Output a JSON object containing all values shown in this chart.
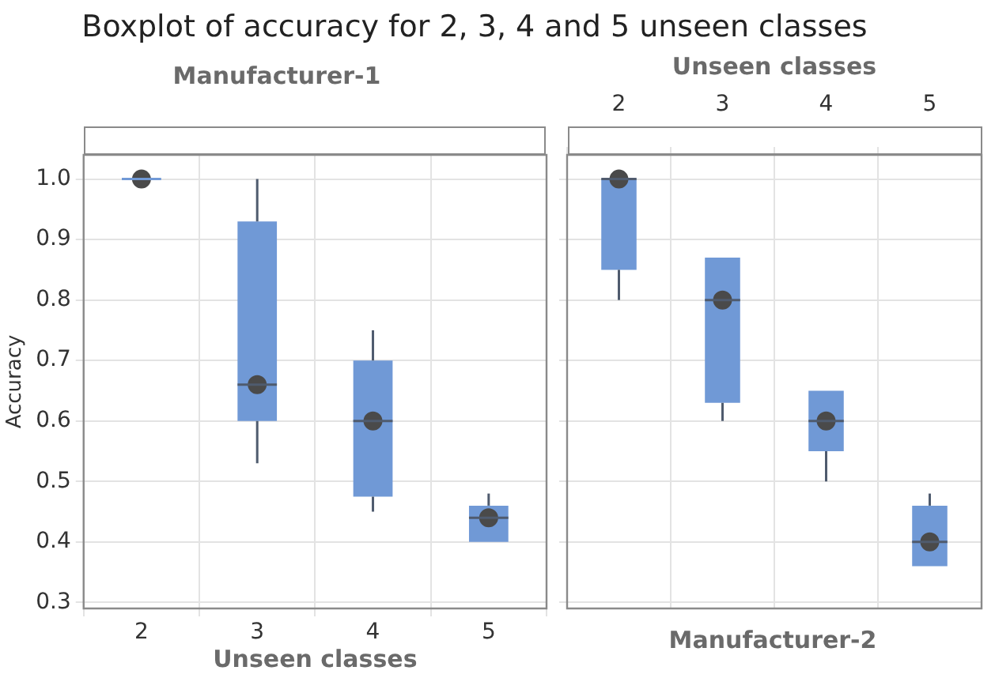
{
  "chart_data": [
    {
      "type": "box",
      "title": "Boxplot of accuracy for 2, 3, 4 and 5 unseen classes",
      "subtitle": "Manufacturer-1",
      "xlabel": "Unseen classes",
      "ylabel": "Accuracy",
      "categories": [
        "2",
        "3",
        "4",
        "5"
      ],
      "series": [
        {
          "color": "#7099d6",
          "boxes": [
            {
              "low": 1.0,
              "q1": 1.0,
              "median": 1.0,
              "q3": 1.0,
              "high": 1.0,
              "mean": 1.0
            },
            {
              "low": 0.53,
              "q1": 0.6,
              "median": 0.66,
              "q3": 0.93,
              "high": 1.0,
              "mean": 0.66
            },
            {
              "low": 0.45,
              "q1": 0.475,
              "median": 0.6,
              "q3": 0.7,
              "high": 0.75,
              "mean": 0.6
            },
            {
              "low": 0.4,
              "q1": 0.4,
              "median": 0.44,
              "q3": 0.46,
              "high": 0.48,
              "mean": 0.44
            }
          ]
        }
      ],
      "ylim": [
        0.29,
        1.04
      ],
      "yticks": [
        0.3,
        0.4,
        0.5,
        0.6,
        0.7,
        0.8,
        0.9,
        {
          "value": 1.0,
          "label": "1.0"
        }
      ],
      "grid": true
    },
    {
      "type": "box",
      "subtitle": "Manufacturer-2",
      "xlabel": "Unseen classes",
      "categories": [
        "2",
        "3",
        "4",
        "5"
      ],
      "series": [
        {
          "color": "#7099d6",
          "boxes": [
            {
              "low": 0.8,
              "q1": 0.85,
              "median": 1.0,
              "q3": 1.0,
              "high": 1.0,
              "mean": 1.0
            },
            {
              "low": 0.6,
              "q1": 0.63,
              "median": 0.8,
              "q3": 0.87,
              "high": 0.87,
              "mean": 0.8
            },
            {
              "low": 0.5,
              "q1": 0.55,
              "median": 0.6,
              "q3": 0.65,
              "high": 0.65,
              "mean": 0.6
            },
            {
              "low": 0.36,
              "q1": 0.36,
              "median": 0.4,
              "q3": 0.46,
              "high": 0.48,
              "mean": 0.4
            }
          ]
        }
      ],
      "ylim": [
        0.29,
        1.04
      ],
      "yticks": [
        0.3,
        0.4,
        0.5,
        0.6,
        0.7,
        0.8,
        0.9,
        1
      ],
      "grid": true,
      "tick_labels": "x"
    }
  ]
}
